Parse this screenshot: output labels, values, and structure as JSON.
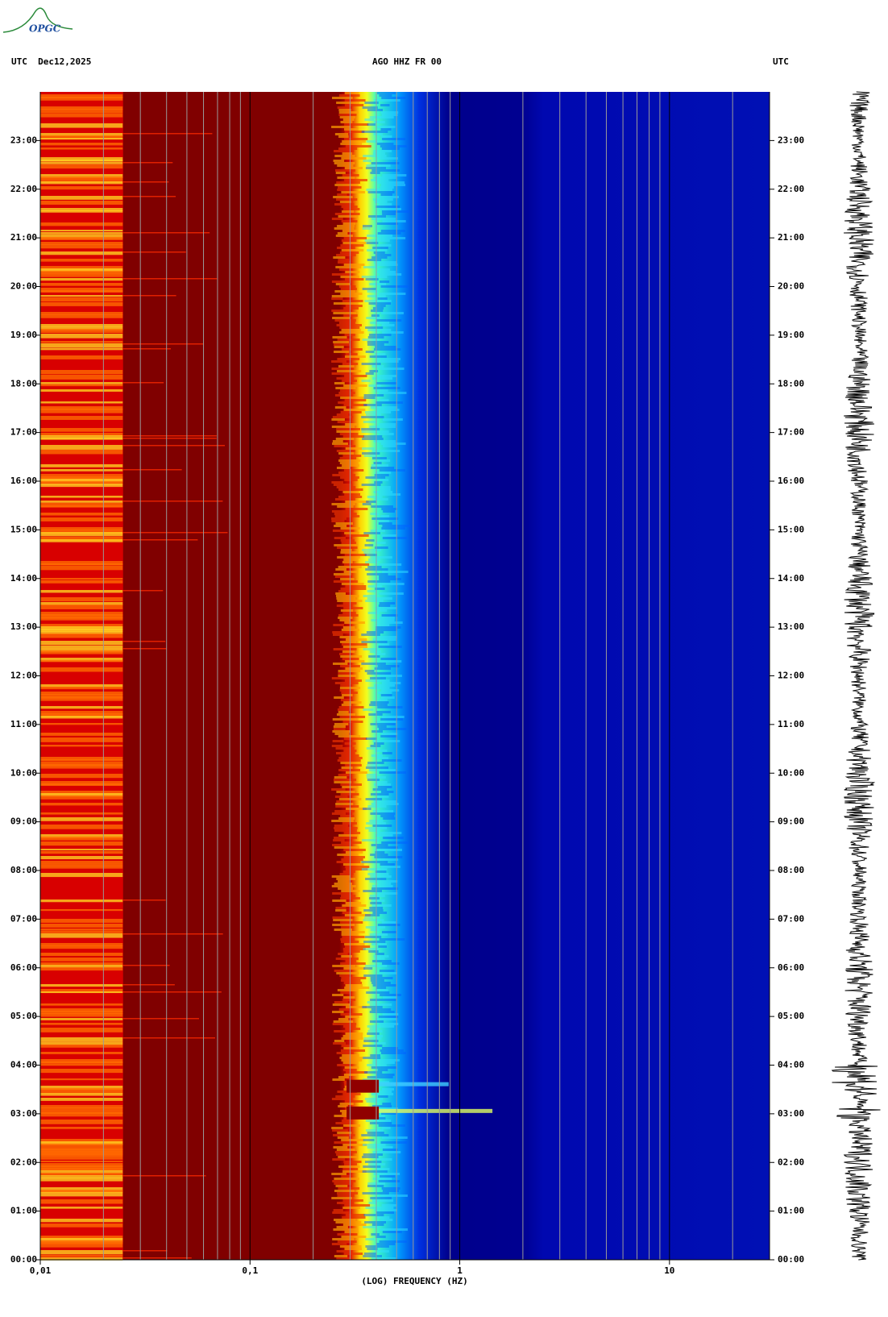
{
  "header": {
    "left": "UTC  Dec12,2025",
    "center": "AGO HHZ FR 00",
    "right": "UTC"
  },
  "logo": "OPGC",
  "chart_data": {
    "type": "spectrogram",
    "xlabel": "(LOG) FREQUENCY (HZ)",
    "xscale": "log",
    "xlim": [
      0.01,
      30
    ],
    "xticks": [
      {
        "value": 0.01,
        "label": "0,01"
      },
      {
        "value": 0.1,
        "label": "0,1"
      },
      1,
      10
    ],
    "xgrid": [
      0.02,
      0.03,
      0.04,
      0.05,
      0.06,
      0.07,
      0.08,
      0.09,
      0.2,
      0.3,
      0.4,
      0.5,
      0.6,
      0.7,
      0.8,
      0.9,
      2,
      3,
      4,
      5,
      6,
      7,
      8,
      9,
      20
    ],
    "ylim": [
      0,
      24
    ],
    "yticks": [
      {
        "value": 0,
        "label": "00:00"
      },
      {
        "value": 1,
        "label": "01:00"
      },
      {
        "value": 2,
        "label": "02:00"
      },
      {
        "value": 3,
        "label": "03:00"
      },
      {
        "value": 4,
        "label": "04:00"
      },
      {
        "value": 5,
        "label": "05:00"
      },
      {
        "value": 6,
        "label": "06:00"
      },
      {
        "value": 7,
        "label": "07:00"
      },
      {
        "value": 8,
        "label": "08:00"
      },
      {
        "value": 9,
        "label": "09:00"
      },
      {
        "value": 10,
        "label": "10:00"
      },
      {
        "value": 11,
        "label": "11:00"
      },
      {
        "value": 12,
        "label": "12:00"
      },
      {
        "value": 13,
        "label": "13:00"
      },
      {
        "value": 14,
        "label": "14:00"
      },
      {
        "value": 15,
        "label": "15:00"
      },
      {
        "value": 16,
        "label": "16:00"
      },
      {
        "value": 17,
        "label": "17:00"
      },
      {
        "value": 18,
        "label": "18:00"
      },
      {
        "value": 19,
        "label": "19:00"
      },
      {
        "value": 20,
        "label": "20:00"
      },
      {
        "value": 21,
        "label": "21:00"
      },
      {
        "value": 22,
        "label": "22:00"
      },
      {
        "value": 23,
        "label": "23:00"
      }
    ]
  }
}
